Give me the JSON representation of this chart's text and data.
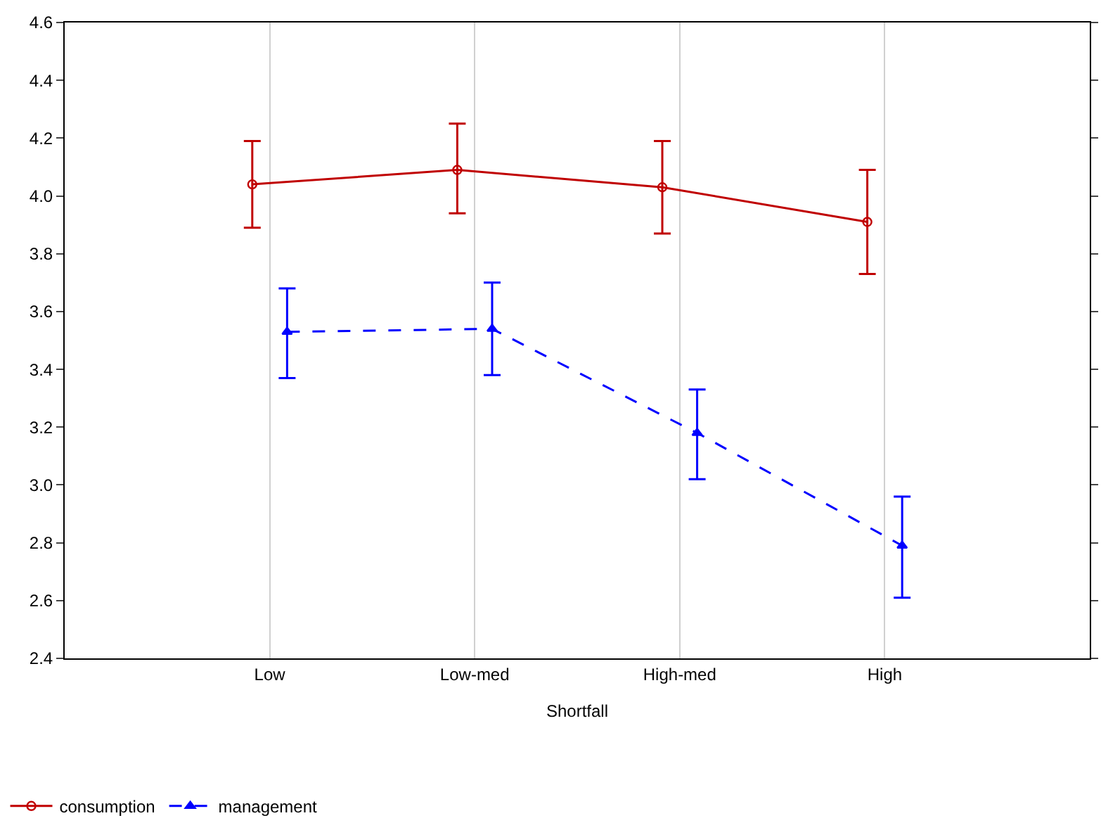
{
  "chart_data": {
    "type": "line",
    "xlabel": "Shortfall",
    "categories": [
      "Low",
      "Low-med",
      "High-med",
      "High"
    ],
    "ylim": [
      2.4,
      4.6
    ],
    "yticks": [
      2.4,
      2.6,
      2.8,
      {
        "value": 3,
        "label": "3.0"
      },
      3.2,
      3.4,
      3.6,
      3.8,
      {
        "value": 4,
        "label": "4.0"
      },
      4.2,
      4.4,
      4.6
    ],
    "grid": "x",
    "legend": "bottom left",
    "series": [
      {
        "name": "consumption",
        "color": "#c00000",
        "values": [
          4.04,
          4.09,
          4.03,
          3.91
        ],
        "errors": [
          [
            3.89,
            4.19
          ],
          [
            3.94,
            4.25
          ],
          [
            3.87,
            4.19
          ],
          [
            3.73,
            4.09
          ]
        ],
        "marker": "circle",
        "line_style": "solid"
      },
      {
        "name": "management",
        "color": "#0000ff",
        "values": [
          3.53,
          3.54,
          3.18,
          2.79
        ],
        "errors": [
          [
            3.37,
            3.68
          ],
          [
            3.38,
            3.7
          ],
          [
            3.02,
            3.33
          ],
          [
            2.61,
            2.96
          ]
        ],
        "marker": "triangle",
        "line_style": "dashed"
      }
    ]
  }
}
